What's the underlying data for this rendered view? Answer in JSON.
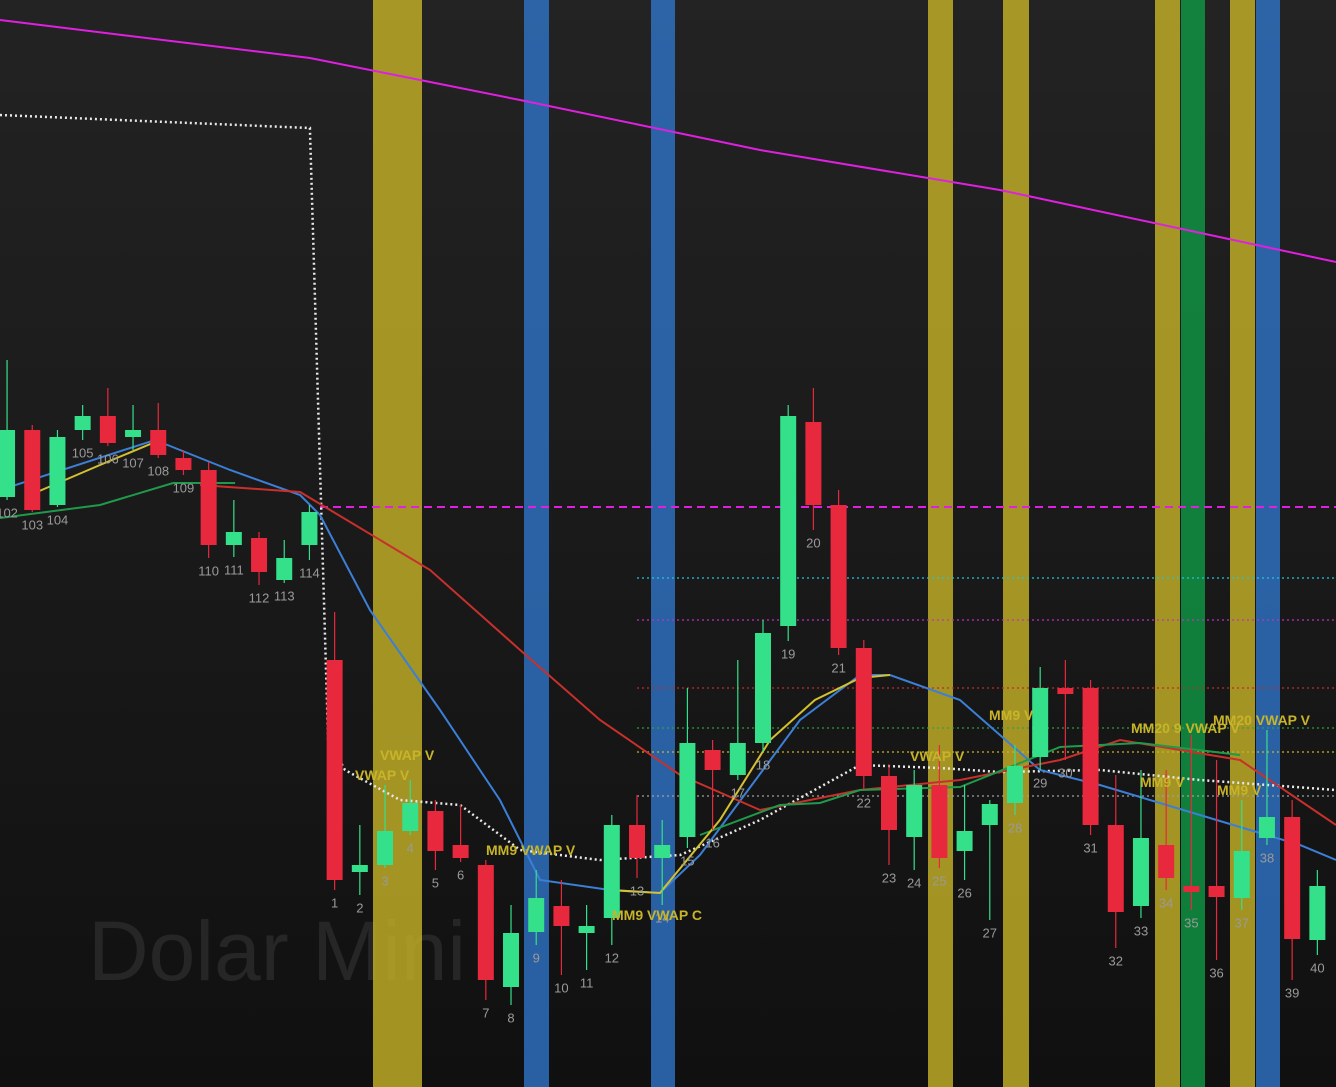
{
  "chart_data": {
    "type": "candlestick",
    "watermark": "Dolar Mini",
    "categories": [
      "102",
      "103",
      "104",
      "105",
      "106",
      "107",
      "108",
      "109",
      "110",
      "111",
      "112",
      "113",
      "114",
      "1",
      "2",
      "3",
      "4",
      "5",
      "6",
      "7",
      "8",
      "9",
      "10",
      "11",
      "12",
      "13",
      "14",
      "15",
      "16",
      "17",
      "18",
      "19",
      "20",
      "21",
      "22",
      "23",
      "24",
      "25",
      "26",
      "27",
      "28",
      "29",
      "30",
      "31",
      "32",
      "33",
      "34",
      "35",
      "36",
      "37",
      "38",
      "39",
      "40"
    ],
    "open": [
      590,
      657,
      582,
      657,
      671,
      650,
      657,
      629,
      617,
      542,
      549,
      507,
      542,
      427,
      215,
      222,
      256,
      276,
      242,
      222,
      100,
      155,
      181,
      154,
      169,
      262,
      229,
      250,
      337,
      312,
      344,
      461,
      665,
      582,
      439,
      311,
      250,
      302,
      236,
      262,
      284,
      330,
      399,
      399,
      262,
      181,
      242,
      201,
      201,
      189,
      249,
      270,
      147
    ],
    "high": [
      727,
      662,
      657,
      682,
      699,
      682,
      684,
      637,
      625,
      587,
      555,
      547,
      582,
      475,
      262,
      302,
      307,
      287,
      282,
      227,
      182,
      217,
      207,
      182,
      272,
      292,
      267,
      399,
      347,
      427,
      467,
      682,
      699,
      597,
      447,
      322,
      317,
      342,
      302,
      287,
      342,
      420,
      427,
      407,
      312,
      317,
      317,
      352,
      327,
      287,
      357,
      287,
      217
    ],
    "low": [
      587,
      575,
      580,
      647,
      641,
      637,
      629,
      612,
      529,
      530,
      502,
      504,
      527,
      197,
      192,
      219,
      252,
      217,
      225,
      87,
      82,
      142,
      112,
      117,
      142,
      209,
      182,
      239,
      257,
      307,
      335,
      446,
      557,
      432,
      297,
      222,
      217,
      219,
      207,
      167,
      272,
      317,
      327,
      252,
      139,
      169,
      197,
      177,
      127,
      177,
      242,
      107,
      132
    ],
    "close": [
      657,
      577,
      650,
      671,
      644,
      657,
      632,
      617,
      542,
      555,
      515,
      529,
      575,
      207,
      222,
      256,
      284,
      236,
      229,
      107,
      154,
      189,
      161,
      161,
      262,
      229,
      242,
      344,
      317,
      344,
      454,
      671,
      582,
      439,
      311,
      257,
      302,
      229,
      256,
      283,
      321,
      399,
      393,
      262,
      175,
      249,
      209,
      195,
      190,
      236,
      270,
      148,
      201
    ],
    "up_color": "#34e08a",
    "down_color": "#e8283c",
    "xlim": [
      -0.28,
      52.74
    ],
    "ylim": [
      0,
      1087
    ],
    "lines": [
      {
        "color": "#e020e0",
        "style": "solid",
        "x": [
          -0.28,
          12.02,
          20.36,
          29.88,
          39.4,
          52.74
        ],
        "values": [
          1067,
          1029,
          987,
          937,
          897,
          825
        ]
      },
      {
        "color": "#e8e8e8",
        "style": "dotted",
        "x": [
          -0.28,
          12.02,
          12.74,
          13.41,
          15.6,
          17.98,
          20.36,
          23.53,
          26.71,
          29.88,
          33.85,
          37.02,
          39.4,
          43.37,
          47.34,
          52.74
        ],
        "values": [
          972,
          959,
          347,
          317,
          287,
          282,
          237,
          227,
          232,
          267,
          322,
          319,
          315,
          317,
          307,
          297
        ]
      },
      {
        "color": "#3b7fd6",
        "style": "solid",
        "x": [
          -0.28,
          5.87,
          8.85,
          11.63,
          12.42,
          14.4,
          17.18,
          19.56,
          21.15,
          23.93,
          25.91,
          27.5,
          31.47,
          33.85,
          35.04,
          37.82,
          40.99,
          43.37,
          47.34,
          51.31,
          52.74
        ],
        "values": [
          597,
          647,
          617,
          592,
          572,
          477,
          377,
          287,
          207,
          197,
          194,
          232,
          367,
          412,
          412,
          387,
          317,
          302,
          272,
          242,
          227
        ]
      },
      {
        "color": "#c8302c",
        "style": "solid",
        "x": [
          7.66,
          11.63,
          12.82,
          16.79,
          20.36,
          23.53,
          26.71,
          29.88,
          33.85,
          37.82,
          41.79,
          44.17,
          48.93,
          52.74
        ],
        "values": [
          602,
          595,
          577,
          517,
          437,
          367,
          312,
          277,
          297,
          307,
          327,
          347,
          327,
          262
        ]
      },
      {
        "color": "#1f9a4a",
        "style": "solid",
        "x": [
          -0.28,
          3.69,
          6.59,
          9.05,
          null,
          27.5,
          30.67,
          32.26,
          33.85,
          37.82,
          41.79,
          44.96,
          48.93
        ],
        "values": [
          569,
          582,
          604,
          604,
          null,
          252,
          282,
          284,
          297,
          300,
          340,
          344,
          332
        ]
      },
      {
        "color": "#d4c030",
        "style": "solid",
        "x": [
          0.91,
          3.69,
          6.07,
          null,
          23.93,
          25.91,
          28.29,
          30.28,
          32.06,
          33.85,
          35.04
        ],
        "values": [
          592,
          622,
          647,
          null,
          197,
          194,
          267,
          347,
          387,
          409,
          412
        ]
      }
    ],
    "levels": [
      {
        "value": 580,
        "color": "#e020e0",
        "style": "dashed",
        "x_start": 12.42
      },
      {
        "value": 509,
        "color": "#20c8d8",
        "style": "dotted",
        "x_start": 25
      },
      {
        "value": 467,
        "color": "#c030c0",
        "style": "dotted",
        "x_start": 25
      },
      {
        "value": 399,
        "color": "#c82828",
        "style": "dotted",
        "x_start": 25
      },
      {
        "value": 359,
        "color": "#30a040",
        "style": "dotted",
        "x_start": 25
      },
      {
        "value": 335,
        "color": "#c8b820",
        "style": "dotted",
        "x_start": 25
      },
      {
        "value": 291,
        "color": "#a0a0a0",
        "style": "dotted",
        "x_start": 25
      }
    ],
    "annotations": [
      "VWAP V",
      "VWAP V",
      "MM9 VWAP V",
      "MM9 VWAP C",
      "VWAP V",
      "MM9 V",
      "MM20 9 VWAP V",
      "MM20 VWAP V",
      "MM9 V",
      "MM9 V"
    ]
  }
}
